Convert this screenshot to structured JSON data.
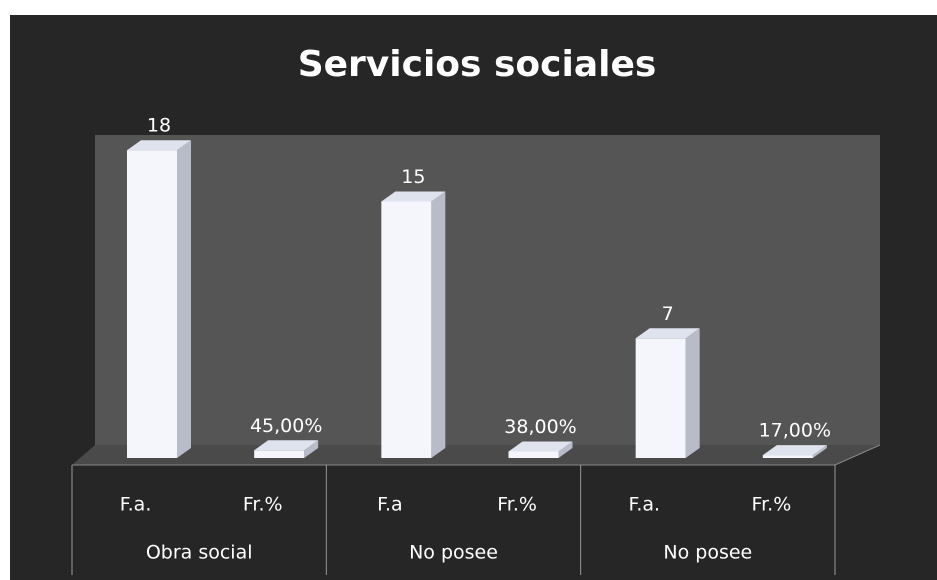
{
  "chart_data": {
    "type": "bar3d",
    "title": "Servicios sociales",
    "groups": [
      "Obra social",
      "No posee",
      "No posee"
    ],
    "categories": [
      "F.a.",
      "Fr.%",
      "F.a",
      "Fr.%",
      "F.a.",
      "Fr.%"
    ],
    "values": [
      18,
      0.45,
      15,
      0.38,
      7,
      0.17
    ],
    "value_labels": [
      "18",
      "45,00%",
      "15",
      "38,00%",
      "7",
      "17,00%"
    ],
    "color": "#f4f6fb",
    "ylim": [
      0,
      20
    ]
  }
}
